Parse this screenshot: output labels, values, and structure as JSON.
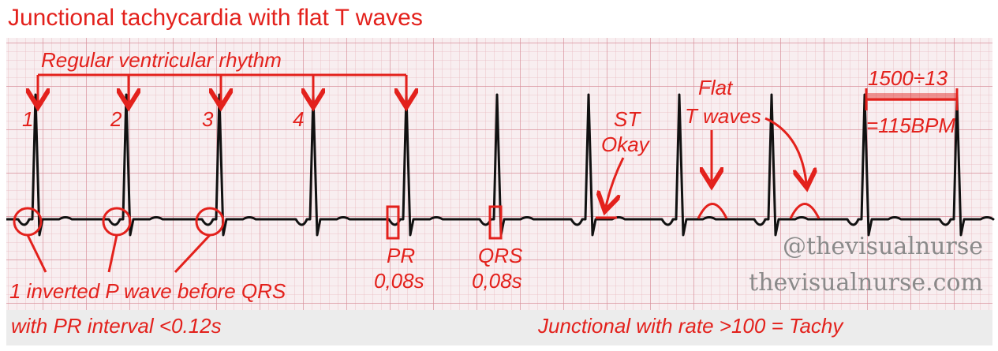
{
  "title": "Junctional tachycardia with flat T waves",
  "annotations": {
    "rhythm": "Regular ventricular rhythm",
    "beats": [
      "1",
      "2",
      "3",
      "4"
    ],
    "st": [
      "ST",
      "Okay"
    ],
    "flat_t": [
      "Flat",
      "T waves"
    ],
    "rate_calc": [
      "1500÷13",
      "=115BPM"
    ],
    "pr": [
      "PR",
      "0,08s"
    ],
    "qrs": [
      "QRS",
      "0,08s"
    ],
    "inverted_p": "1 inverted P wave before QRS"
  },
  "footer": {
    "left": "with PR interval <0.12s",
    "right": "Junctional with rate >100 = Tachy"
  },
  "watermark": [
    "@thevisualnurse",
    "thevisualnurse.com"
  ]
}
